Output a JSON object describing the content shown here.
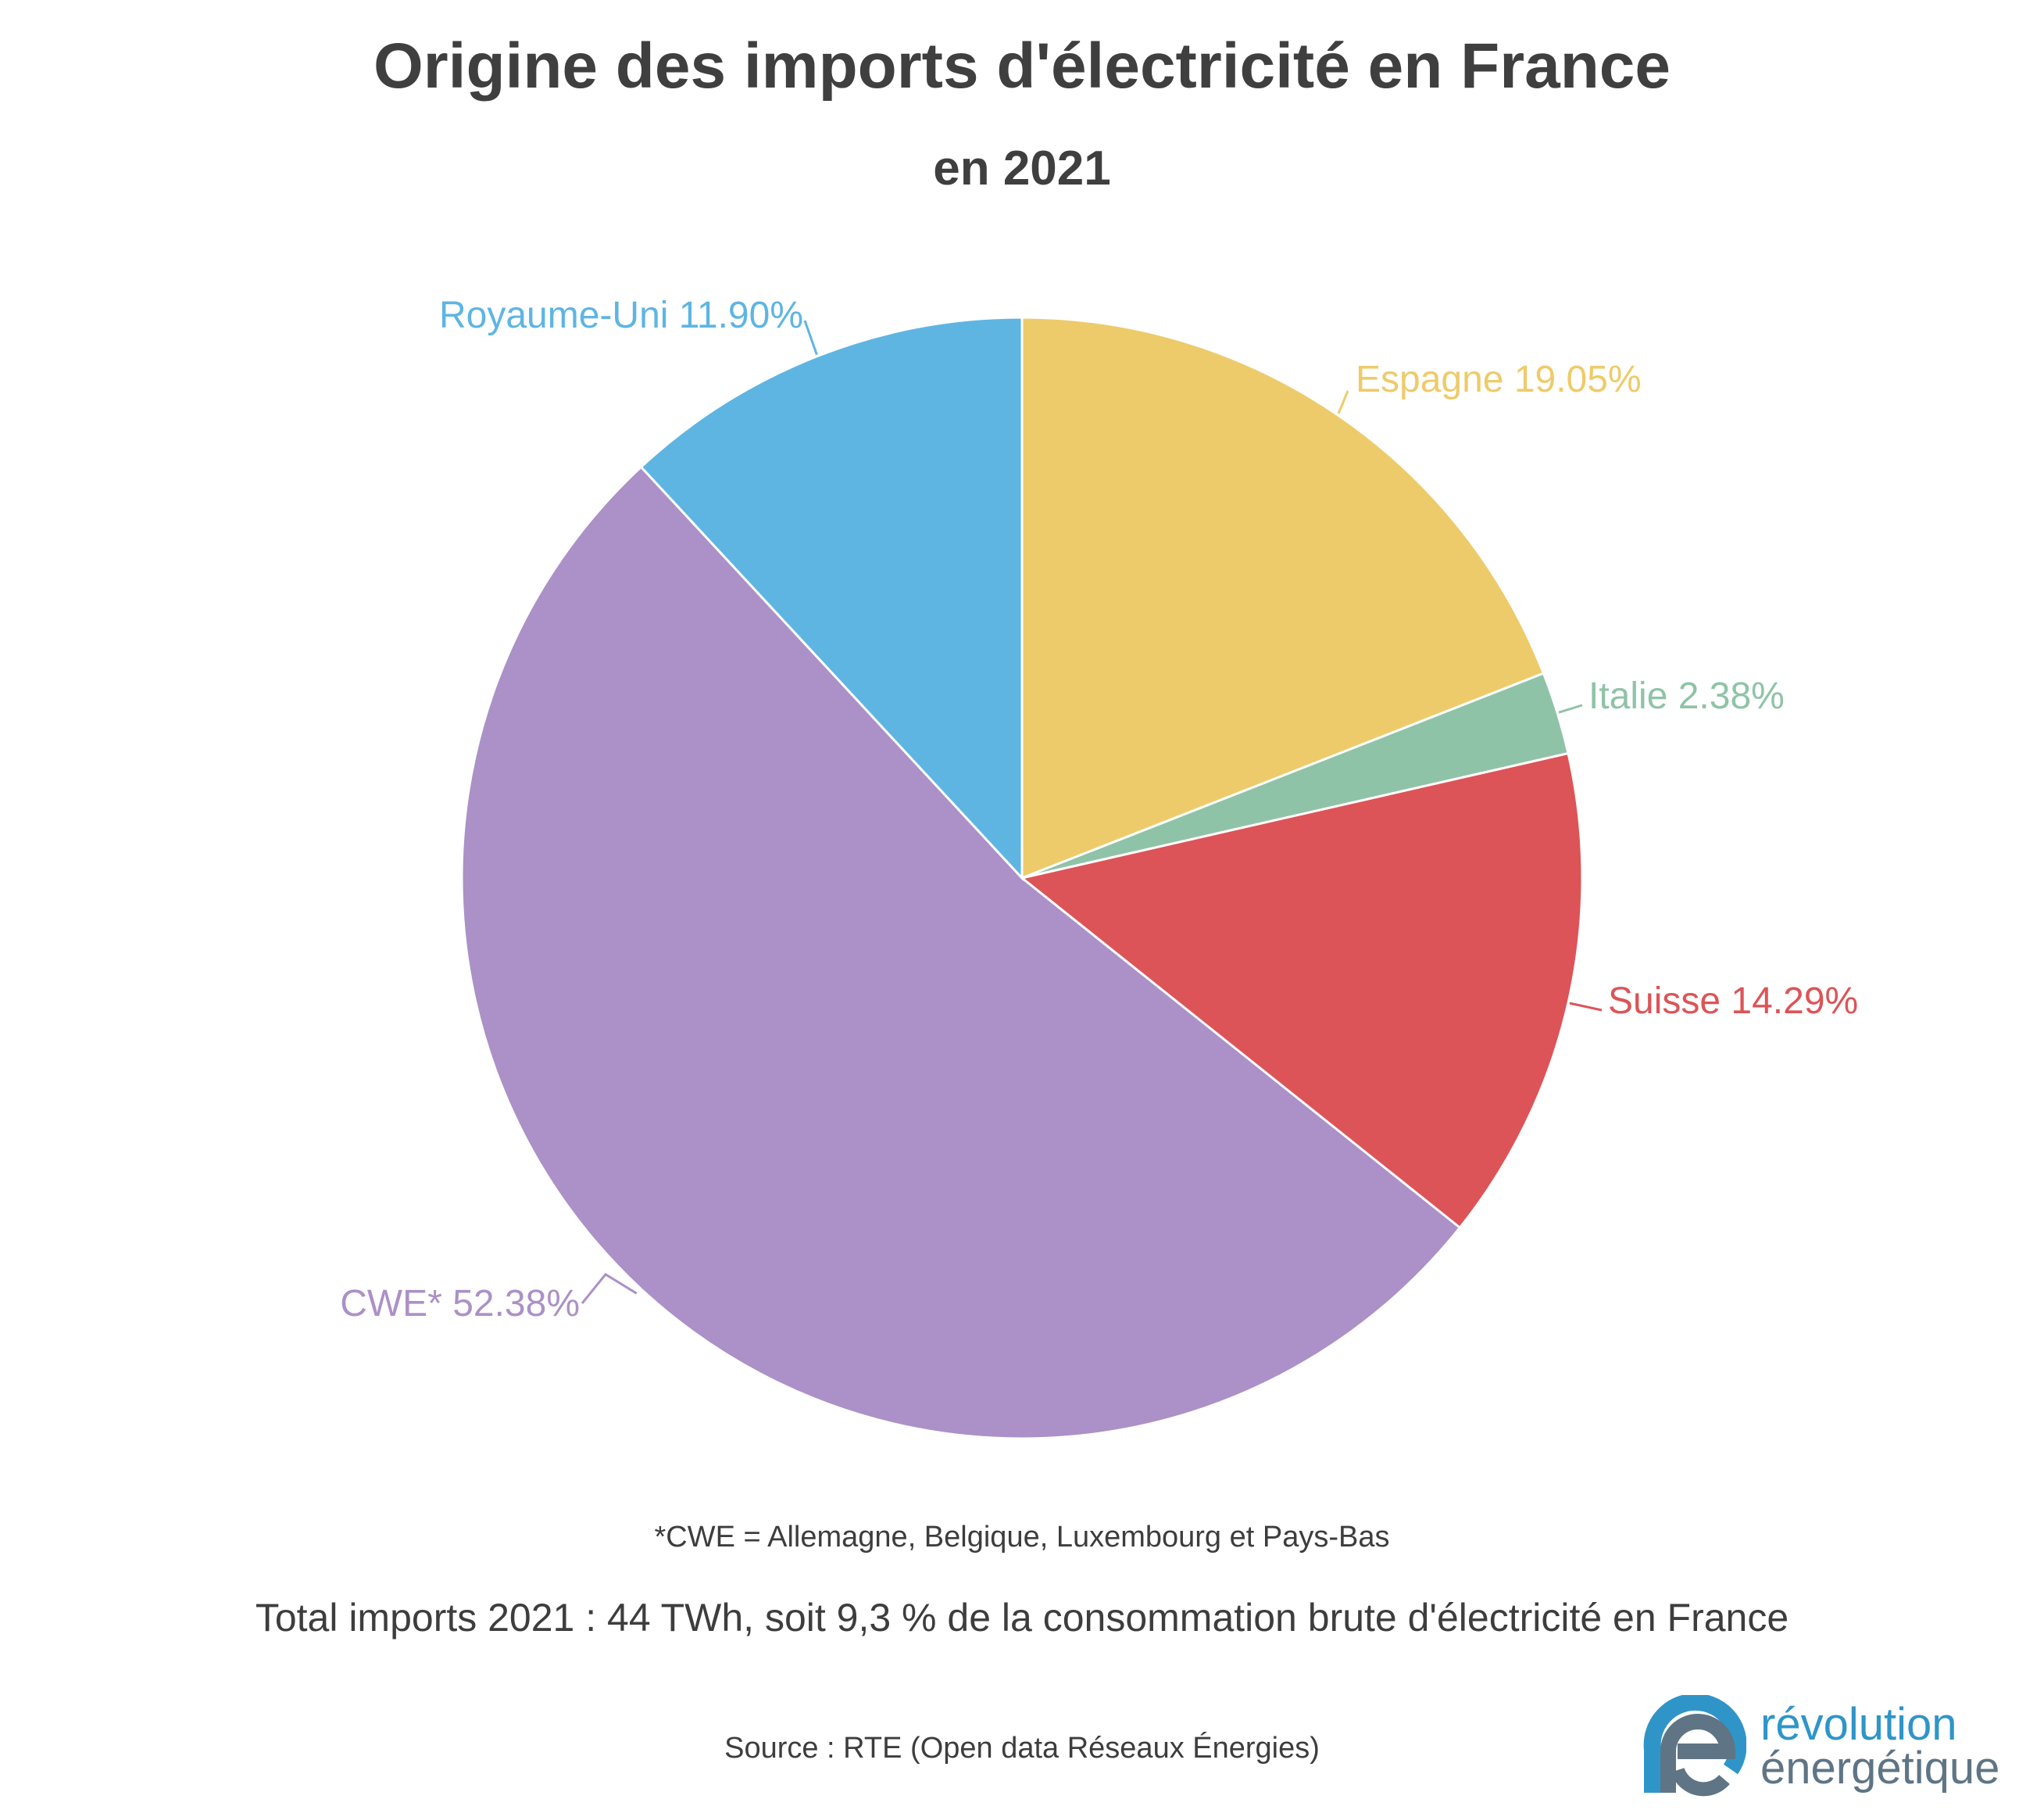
{
  "chart_data": {
    "type": "pie",
    "title": "Origine des imports d'électricité en France",
    "subtitle": "en 2021",
    "unit": "%",
    "slices": [
      {
        "label": "Espagne",
        "value": 19.05,
        "display": "Espagne 19.05%",
        "color": "#eecb6a"
      },
      {
        "label": "Italie",
        "value": 2.38,
        "display": "Italie 2.38%",
        "color": "#8fc3a7"
      },
      {
        "label": "Suisse",
        "value": 14.29,
        "display": "Suisse 14.29%",
        "color": "#dc5457"
      },
      {
        "label": "CWE*",
        "value": 52.38,
        "display": "CWE* 52.38%",
        "color": "#ab91c7"
      },
      {
        "label": "Royaume-Uni",
        "value": 11.9,
        "display": "Royaume-Uni 11.90%",
        "color": "#5eb5e2"
      }
    ]
  },
  "footnote": "*CWE =  Allemagne, Belgique, Luxembourg et Pays-Bas",
  "total_text": "Total imports 2021 : 44 TWh, soit 9,3 % de la consommation brute d'électricité en France",
  "source_text": "Source : RTE (Open data Réseaux Énergies)",
  "logo": {
    "line1": "révolution",
    "line2": "énergétique",
    "colors": {
      "blue": "#2f95c8",
      "gray": "#5f7585"
    }
  }
}
